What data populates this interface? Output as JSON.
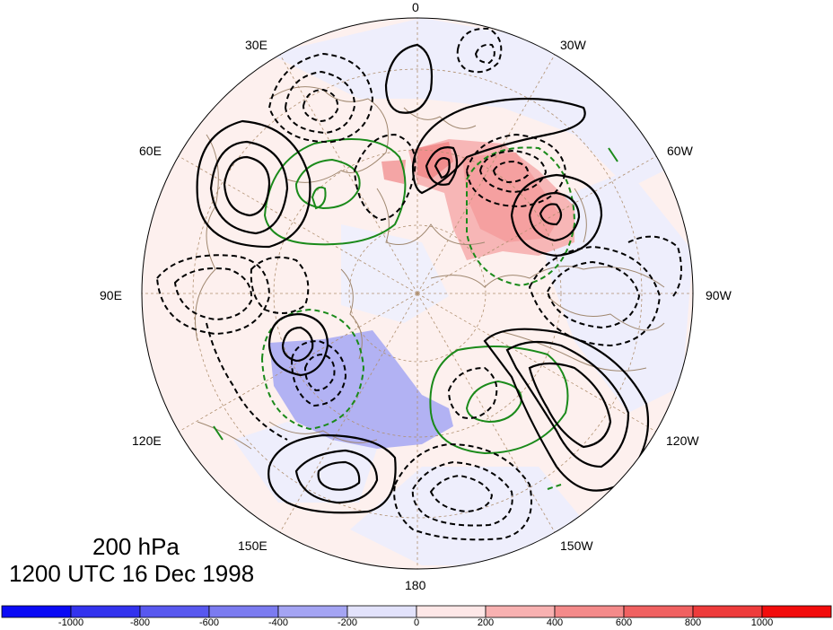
{
  "map": {
    "projection": "polar stereographic, North Pole",
    "level_label": "200 hPa",
    "time_label": "1200 UTC 16 Dec 1998",
    "longitude_labels": {
      "lon_0": "0",
      "lon_30w": "30W",
      "lon_60w": "60W",
      "lon_90w": "90W",
      "lon_120w": "120W",
      "lon_150w": "150W",
      "lon_180": "180",
      "lon_150e": "150E",
      "lon_120e": "120E",
      "lon_90e": "90E",
      "lon_60e": "60E",
      "lon_30e": "30E"
    },
    "contour_styles": {
      "positive_black": "solid",
      "negative_black": "dashed",
      "positive_green": "solid",
      "negative_green": "dashed"
    },
    "colors": {
      "positive_contour": "#000000",
      "negative_contour": "#000000",
      "green_contour": "#1a8a1a",
      "coastline": "#a08870",
      "gridline": "#b09070"
    }
  },
  "colorbar": {
    "min": -1200,
    "max": 1200,
    "labels": [
      "-1000",
      "-800",
      "-600",
      "-400",
      "-200",
      "0",
      "200",
      "400",
      "600",
      "800",
      "1000"
    ],
    "colors": [
      "#0a0af5",
      "#3333ee",
      "#5858ef",
      "#7b7bf0",
      "#a4a4f3",
      "#e2e2fb",
      "#fde7e7",
      "#f8b1b1",
      "#f48a8a",
      "#f06161",
      "#ee3b3b",
      "#f20c0c"
    ]
  }
}
